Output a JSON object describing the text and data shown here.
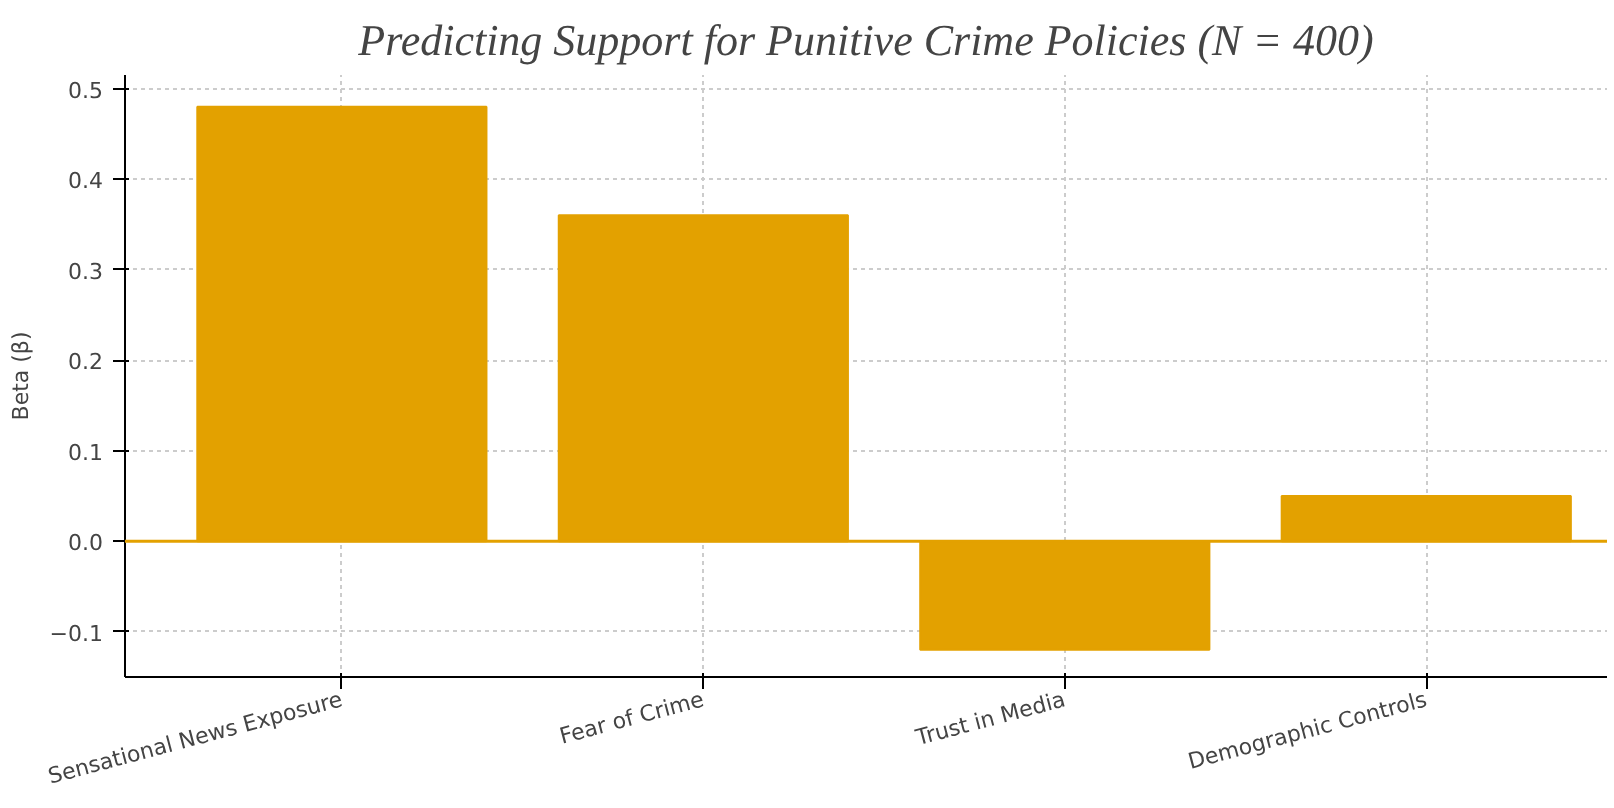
{
  "chart_data": {
    "type": "bar",
    "title": "Predicting Support for Punitive Crime Policies (N = 400)",
    "ylabel": "Beta (β)",
    "categories": [
      "Sensational News Exposure",
      "Fear of Crime",
      "Trust in Media",
      "Demographic Controls"
    ],
    "values": [
      0.48,
      0.36,
      -0.12,
      0.05
    ],
    "color": "#e3a100",
    "ylim": [
      -0.15,
      0.515
    ],
    "yticks": [
      {
        "value": -0.1,
        "label": "−0.1"
      },
      {
        "value": 0.0,
        "label": "0.0"
      },
      {
        "value": 0.1,
        "label": "0.1"
      },
      {
        "value": 0.2,
        "label": "0.2"
      },
      {
        "value": 0.3,
        "label": "0.3"
      },
      {
        "value": 0.4,
        "label": "0.4"
      },
      {
        "value": 0.5,
        "label": "0.5"
      }
    ],
    "grid": true,
    "ref_lines": [
      {
        "axis": "y",
        "value": 0,
        "color": "#e3a100",
        "line_style": "solid"
      }
    ]
  }
}
